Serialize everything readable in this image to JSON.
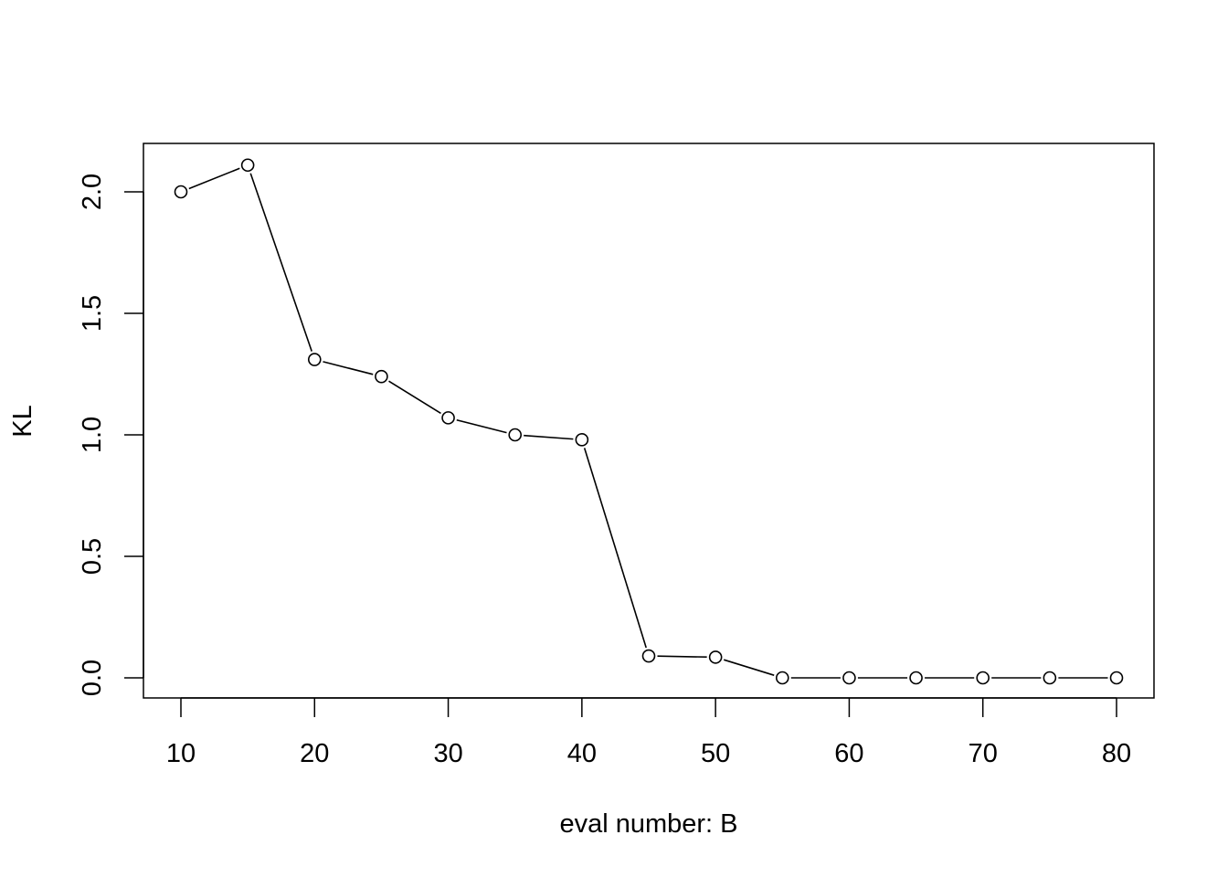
{
  "chart_data": {
    "type": "line",
    "markers": "open-circle",
    "title": "",
    "xlabel": "eval number: B",
    "ylabel": "KL",
    "xlim": [
      10,
      80
    ],
    "ylim": [
      0,
      2.11
    ],
    "grid": false,
    "legend": "none",
    "x_ticks": [
      "10",
      "20",
      "30",
      "40",
      "50",
      "60",
      "70",
      "80"
    ],
    "y_ticks": [
      "0.0",
      "0.5",
      "1.0",
      "1.5",
      "2.0"
    ],
    "x": [
      10,
      15,
      20,
      25,
      30,
      35,
      40,
      45,
      50,
      55,
      60,
      65,
      70,
      75,
      80
    ],
    "series": [
      {
        "values": [
          2.0,
          2.11,
          1.31,
          1.24,
          1.07,
          1.0,
          0.98,
          0.09,
          0.085,
          0.0,
          0.0,
          0.0,
          0.0,
          0.0,
          0.0
        ]
      }
    ],
    "colors": {
      "line": "#000000",
      "marker": "#000000",
      "axis": "#000000"
    }
  }
}
